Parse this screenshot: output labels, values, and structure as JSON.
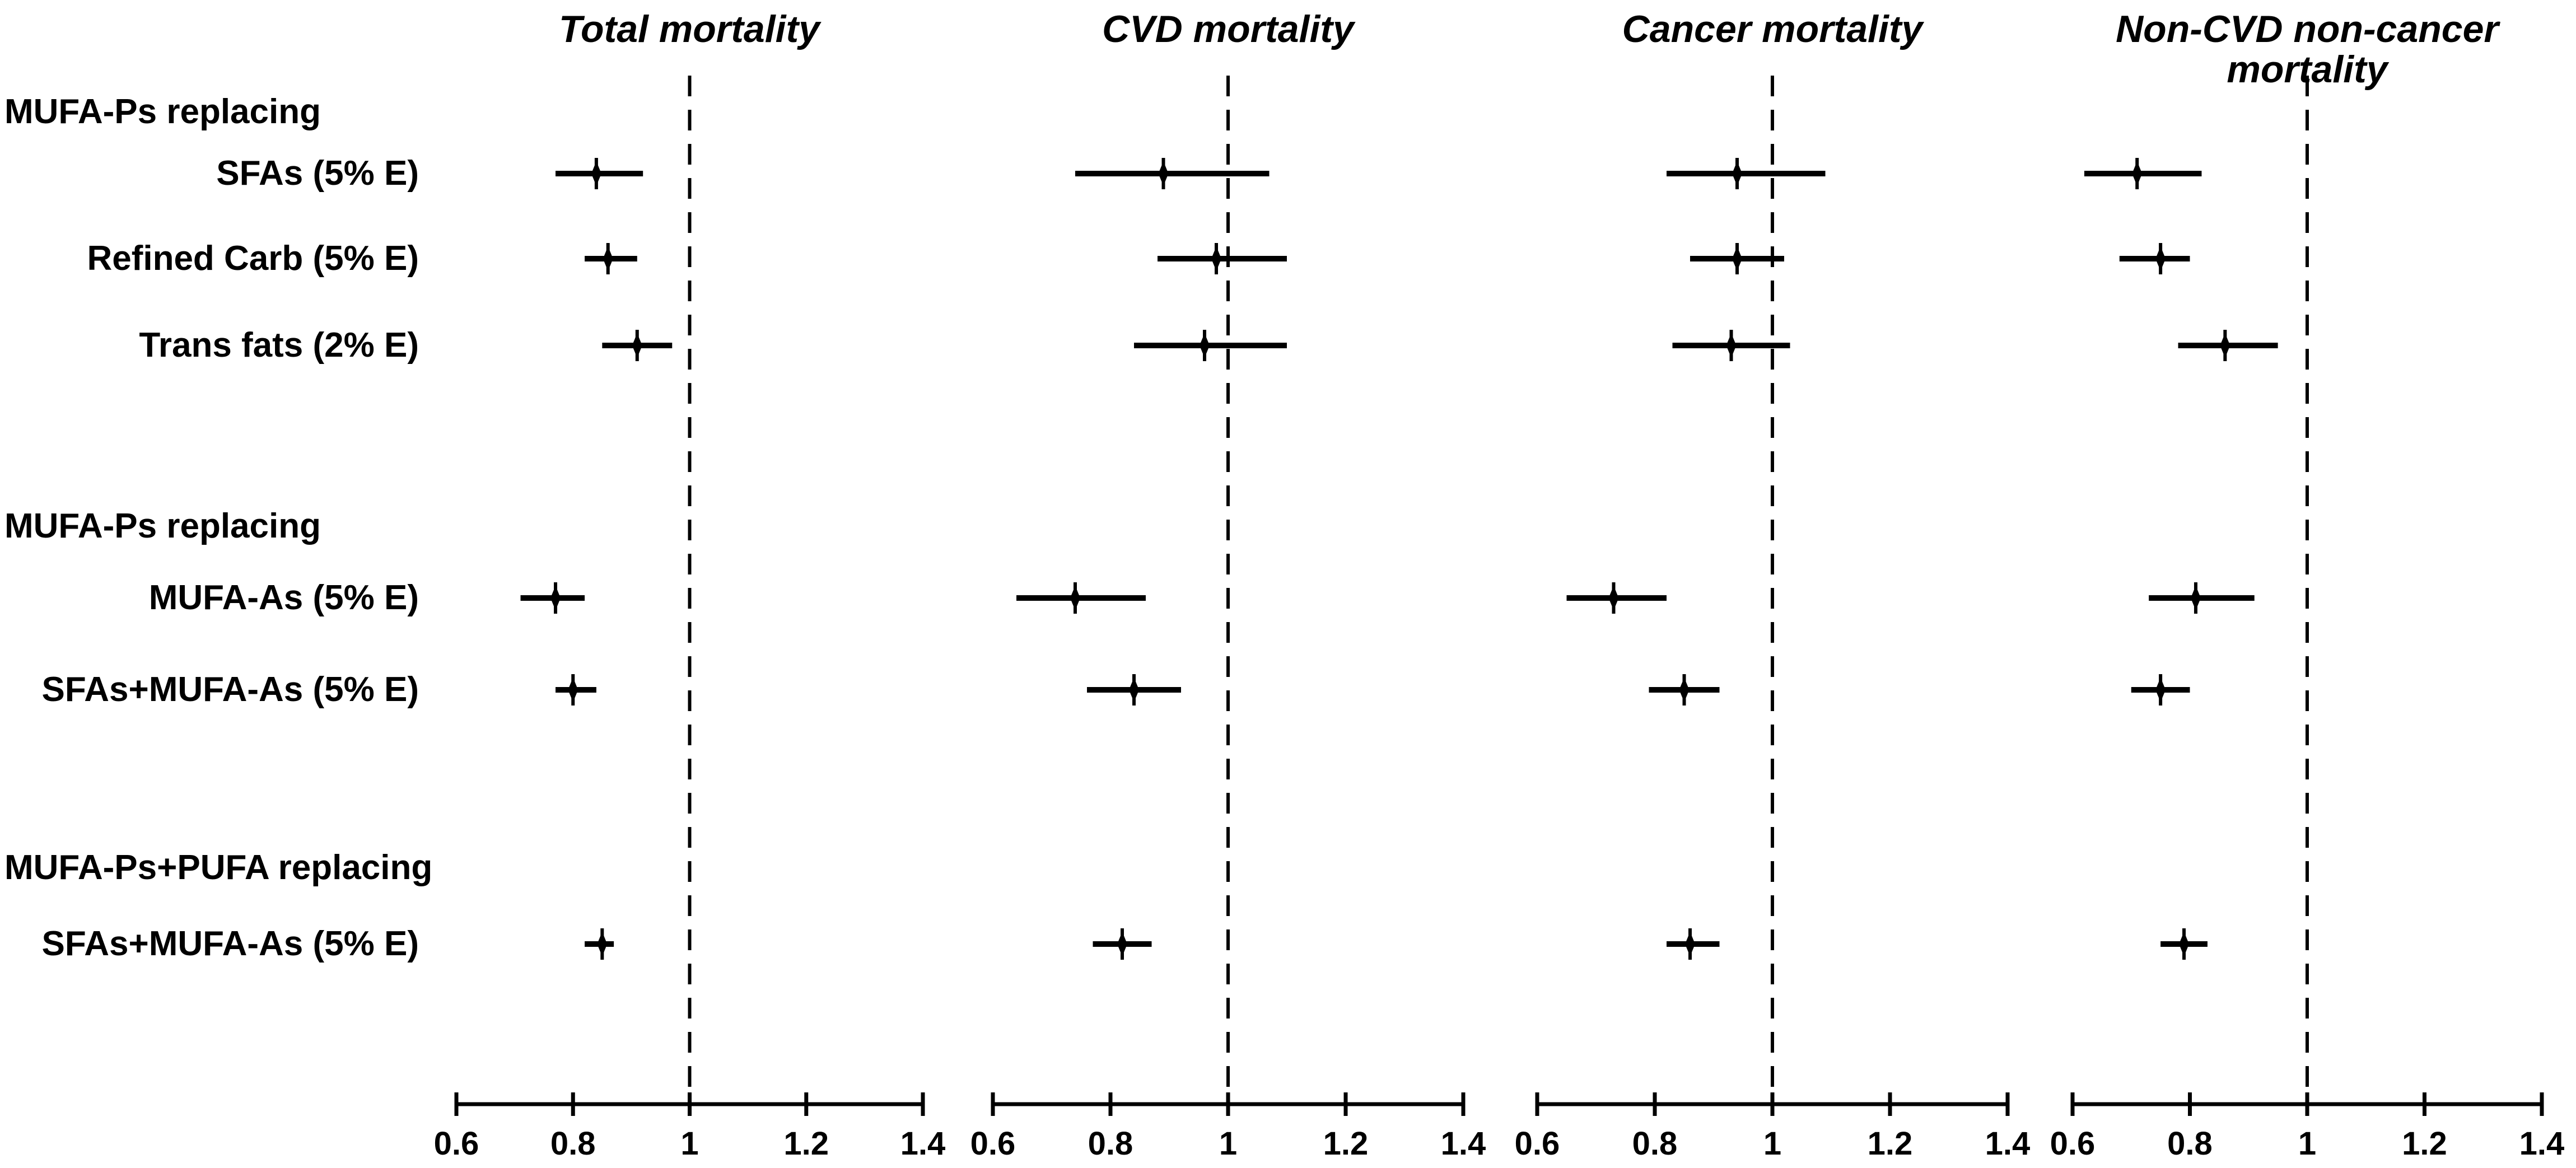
{
  "figure": {
    "colors": {
      "ink": "#000000",
      "background": "#ffffff"
    }
  },
  "chart_data": {
    "type": "forest",
    "x_axis": {
      "range": [
        0.6,
        1.4
      ],
      "ticks": [
        0.6,
        0.8,
        1.0,
        1.2,
        1.4
      ],
      "tick_labels": [
        "0.6",
        "0.8",
        "1",
        "1.2",
        "1.4"
      ],
      "reference_line": 1.0,
      "reference_style": "dashed"
    },
    "groups": [
      {
        "header": "MUFA-Ps replacing",
        "rows": [
          "SFAs (5% E)",
          "Refined Carb (5% E)",
          "Trans fats (2% E)"
        ]
      },
      {
        "header": "MUFA-Ps replacing",
        "rows": [
          "MUFA-As (5% E)",
          "SFAs+MUFA-As (5% E)"
        ]
      },
      {
        "header": "MUFA-Ps+PUFA replacing",
        "rows": [
          "SFAs+MUFA-As (5% E)"
        ]
      }
    ],
    "panels": [
      {
        "title": "Total mortality",
        "estimates": [
          {
            "label": "SFAs (5% E)",
            "hr": 0.84,
            "ci": [
              0.77,
              0.92
            ]
          },
          {
            "label": "Refined Carb (5% E)",
            "hr": 0.86,
            "ci": [
              0.82,
              0.91
            ]
          },
          {
            "label": "Trans fats (2% E)",
            "hr": 0.91,
            "ci": [
              0.85,
              0.97
            ]
          },
          {
            "label": "MUFA-As (5% E)",
            "hr": 0.77,
            "ci": [
              0.71,
              0.82
            ]
          },
          {
            "label": "SFAs+MUFA-As (5% E)",
            "hr": 0.8,
            "ci": [
              0.77,
              0.84
            ]
          },
          {
            "label": "SFAs+MUFA-As (5% E)",
            "hr": 0.85,
            "ci": [
              0.82,
              0.87
            ]
          }
        ]
      },
      {
        "title": "CVD mortality",
        "estimates": [
          {
            "label": "SFAs (5% E)",
            "hr": 0.89,
            "ci": [
              0.74,
              1.07
            ]
          },
          {
            "label": "Refined Carb (5% E)",
            "hr": 0.98,
            "ci": [
              0.88,
              1.1
            ]
          },
          {
            "label": "Trans fats (2% E)",
            "hr": 0.96,
            "ci": [
              0.84,
              1.1
            ]
          },
          {
            "label": "MUFA-As (5% E)",
            "hr": 0.74,
            "ci": [
              0.64,
              0.86
            ]
          },
          {
            "label": "SFAs+MUFA-As (5% E)",
            "hr": 0.84,
            "ci": [
              0.76,
              0.92
            ]
          },
          {
            "label": "SFAs+MUFA-As (5% E)",
            "hr": 0.82,
            "ci": [
              0.77,
              0.87
            ]
          }
        ]
      },
      {
        "title": "Cancer mortality",
        "estimates": [
          {
            "label": "SFAs (5% E)",
            "hr": 0.94,
            "ci": [
              0.82,
              1.09
            ]
          },
          {
            "label": "Refined Carb (5% E)",
            "hr": 0.94,
            "ci": [
              0.86,
              1.02
            ]
          },
          {
            "label": "Trans fats (2% E)",
            "hr": 0.93,
            "ci": [
              0.83,
              1.03
            ]
          },
          {
            "label": "MUFA-As (5% E)",
            "hr": 0.73,
            "ci": [
              0.65,
              0.82
            ]
          },
          {
            "label": "SFAs+MUFA-As (5% E)",
            "hr": 0.85,
            "ci": [
              0.79,
              0.91
            ]
          },
          {
            "label": "SFAs+MUFA-As (5% E)",
            "hr": 0.86,
            "ci": [
              0.82,
              0.91
            ]
          }
        ]
      },
      {
        "title": "Non-CVD non-cancer mortality",
        "estimates": [
          {
            "label": "SFAs (5% E)",
            "hr": 0.71,
            "ci": [
              0.62,
              0.82
            ]
          },
          {
            "label": "Refined Carb (5% E)",
            "hr": 0.75,
            "ci": [
              0.68,
              0.8
            ]
          },
          {
            "label": "Trans fats (2% E)",
            "hr": 0.86,
            "ci": [
              0.78,
              0.95
            ]
          },
          {
            "label": "MUFA-As (5% E)",
            "hr": 0.81,
            "ci": [
              0.73,
              0.91
            ]
          },
          {
            "label": "SFAs+MUFA-As (5% E)",
            "hr": 0.75,
            "ci": [
              0.7,
              0.8
            ]
          },
          {
            "label": "SFAs+MUFA-As (5% E)",
            "hr": 0.79,
            "ci": [
              0.75,
              0.83
            ]
          }
        ]
      }
    ]
  }
}
